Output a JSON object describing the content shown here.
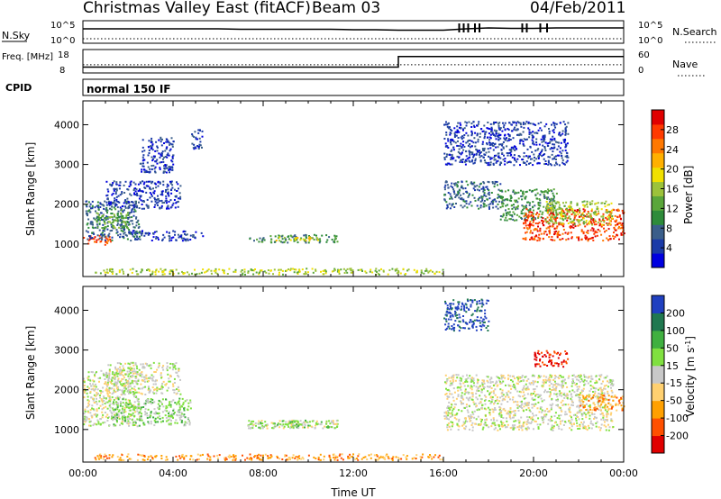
{
  "header": {
    "title": "Christmas Valley East (fitACF)",
    "beam": "Beam 03",
    "date": "04/Feb/2011"
  },
  "chart_data": [
    {
      "type": "line",
      "panel": "noise",
      "left_label": "N.Sky",
      "right_label": "N.Search",
      "left_ticks": [
        "10^5",
        "10^0"
      ],
      "right_ticks": [
        "10^5",
        "10^0"
      ],
      "series": [
        {
          "name": "N.Sky",
          "style": "solid",
          "x": [
            0,
            1,
            2,
            3,
            4,
            5,
            6,
            7,
            8,
            9,
            10,
            11,
            12,
            13,
            14,
            15,
            16,
            17,
            18,
            19,
            20,
            21,
            22,
            23,
            24
          ],
          "values": [
            3.2,
            3.2,
            3.2,
            3.2,
            3.2,
            3.2,
            3.2,
            3.1,
            3.1,
            3.1,
            3.1,
            3.1,
            3.0,
            3.0,
            2.9,
            2.9,
            2.9,
            3.2,
            3.4,
            3.3,
            3.3,
            3.4,
            3.4,
            3.4,
            3.4
          ]
        },
        {
          "name": "N.Search",
          "style": "dotted",
          "x": [
            0,
            2,
            4,
            6,
            8,
            10,
            12,
            14,
            16,
            18,
            20,
            22,
            24
          ],
          "values": [
            1.0,
            1.0,
            1.0,
            1.0,
            1.0,
            1.0,
            1.0,
            1.0,
            1.0,
            1.0,
            1.0,
            1.0,
            1.0
          ]
        }
      ],
      "spikes": [
        16.7,
        16.9,
        17.1,
        17.4,
        17.6,
        19.5,
        19.7,
        20.3,
        20.6
      ]
    },
    {
      "type": "line",
      "panel": "frequency",
      "left_label": "Freq. [MHz]",
      "right_label": "Nave",
      "left_ticks": [
        "18",
        "8"
      ],
      "right_ticks": [
        "60",
        "0"
      ],
      "series": [
        {
          "name": "Freq.",
          "style": "solid",
          "x": [
            0,
            14,
            14,
            24
          ],
          "values": [
            10.5,
            10.5,
            15,
            15
          ]
        },
        {
          "name": "Nave",
          "style": "dotted",
          "x": [
            0,
            24
          ],
          "values": [
            11.5,
            11.5
          ]
        }
      ]
    },
    {
      "type": "table",
      "panel": "cpid",
      "label": "CPID",
      "value": "normal 150 IF"
    },
    {
      "type": "heatmap",
      "panel": "power",
      "xlabel": "",
      "ylabel": "Slant Range [km]",
      "xlim": [
        0,
        24
      ],
      "ylim": [
        180,
        4600
      ],
      "y_ticks": [
        1000,
        2000,
        3000,
        4000
      ],
      "colorbar": {
        "label": "Power [dB]",
        "ticks": [
          "28",
          "24",
          "20",
          "16",
          "12",
          "8",
          "4"
        ],
        "colors": [
          "#0000e0",
          "#1a3aa8",
          "#3a5e8a",
          "#2e8b3a",
          "#5aa63a",
          "#9cc23a",
          "#f0e000",
          "#ffb000",
          "#ff7800",
          "#ff3a00",
          "#e00000"
        ]
      },
      "regions": [
        {
          "x": [
            0.0,
            1.2
          ],
          "y": [
            1000,
            1250
          ],
          "level": 9
        },
        {
          "x": [
            0.1,
            2.5
          ],
          "y": [
            1100,
            2100
          ],
          "level": 2
        },
        {
          "x": [
            0.5,
            2.0
          ],
          "y": [
            1400,
            1900
          ],
          "level": 4
        },
        {
          "x": [
            1.0,
            4.3
          ],
          "y": [
            1900,
            2600
          ],
          "level": 1
        },
        {
          "x": [
            2.0,
            5.3
          ],
          "y": [
            1100,
            1350
          ],
          "level": 1
        },
        {
          "x": [
            2.5,
            4.0
          ],
          "y": [
            2800,
            3700
          ],
          "level": 1
        },
        {
          "x": [
            4.8,
            5.3
          ],
          "y": [
            3400,
            3900
          ],
          "level": 1
        },
        {
          "x": [
            7.3,
            11.3
          ],
          "y": [
            1050,
            1250
          ],
          "level": 3
        },
        {
          "x": [
            8.5,
            10.5
          ],
          "y": [
            1100,
            1200
          ],
          "level": 6
        },
        {
          "x": [
            0.5,
            16.0
          ],
          "y": [
            250,
            400
          ],
          "level": 5
        },
        {
          "x": [
            16.0,
            18.5
          ],
          "y": [
            1900,
            2600
          ],
          "level": 2
        },
        {
          "x": [
            18.5,
            21.0
          ],
          "y": [
            1600,
            2400
          ],
          "level": 3
        },
        {
          "x": [
            19.5,
            24.0
          ],
          "y": [
            1100,
            1900
          ],
          "level": 9
        },
        {
          "x": [
            20.5,
            23.5
          ],
          "y": [
            1500,
            2100
          ],
          "level": 5
        },
        {
          "x": [
            16.0,
            21.5
          ],
          "y": [
            3000,
            4100
          ],
          "level": 1
        }
      ]
    },
    {
      "type": "heatmap",
      "panel": "velocity",
      "xlabel": "Time UT",
      "ylabel": "Slant Range [km]",
      "xlim": [
        0,
        24
      ],
      "ylim": [
        180,
        4600
      ],
      "y_ticks": [
        1000,
        2000,
        3000,
        4000
      ],
      "x_ticks": [
        "00:00",
        "04:00",
        "08:00",
        "12:00",
        "16:00",
        "20:00",
        "00:00"
      ],
      "colorbar": {
        "label": "Velocity [m s^-1]",
        "ticks": [
          "200",
          "100",
          "50",
          "15",
          "-15",
          "-50",
          "-100",
          "-200"
        ],
        "colors": [
          "#e00000",
          "#ff5000",
          "#ffa000",
          "#ffd070",
          "#c8c8c8",
          "#80e040",
          "#40b040",
          "#207850",
          "#2040c0"
        ]
      },
      "regions": [
        {
          "x": [
            0.0,
            2.5
          ],
          "y": [
            1100,
            2500
          ],
          "level": 4
        },
        {
          "x": [
            1.0,
            4.3
          ],
          "y": [
            1900,
            2700
          ],
          "level": 4
        },
        {
          "x": [
            1.3,
            4.8
          ],
          "y": [
            1100,
            1800
          ],
          "level": 5
        },
        {
          "x": [
            7.3,
            11.3
          ],
          "y": [
            1050,
            1250
          ],
          "level": 4
        },
        {
          "x": [
            7.3,
            11.3
          ],
          "y": [
            1050,
            1250
          ],
          "level": 5
        },
        {
          "x": [
            0.5,
            16.0
          ],
          "y": [
            250,
            400
          ],
          "level": 2
        },
        {
          "x": [
            16.0,
            23.5
          ],
          "y": [
            1000,
            2400
          ],
          "level": 4
        },
        {
          "x": [
            20.0,
            21.5
          ],
          "y": [
            2600,
            3000
          ],
          "level": 0
        },
        {
          "x": [
            22.0,
            24.0
          ],
          "y": [
            1500,
            1900
          ],
          "level": 2
        },
        {
          "x": [
            16.0,
            18.0
          ],
          "y": [
            3500,
            4300
          ],
          "level": 8
        }
      ]
    }
  ]
}
